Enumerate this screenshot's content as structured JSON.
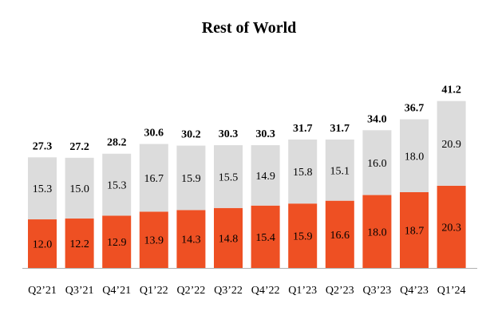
{
  "chart_data": {
    "type": "bar",
    "stacked": true,
    "title": "Rest of World",
    "xlabel": "",
    "ylabel": "",
    "ylim": [
      0,
      45
    ],
    "grid": false,
    "legend": "none",
    "categories": [
      "Q2’21",
      "Q3’21",
      "Q4’21",
      "Q1’22",
      "Q2’22",
      "Q3’22",
      "Q4’22",
      "Q1’23",
      "Q2’23",
      "Q3’23",
      "Q4’23",
      "Q1’24"
    ],
    "series": [
      {
        "name": "bottom",
        "color": "#ee5023",
        "values": [
          12.0,
          12.2,
          12.9,
          13.9,
          14.3,
          14.8,
          15.4,
          15.9,
          16.6,
          18.0,
          18.7,
          20.3
        ]
      },
      {
        "name": "top",
        "color": "#dcdcdc",
        "values": [
          15.3,
          15.0,
          15.3,
          16.7,
          15.9,
          15.5,
          14.9,
          15.8,
          15.1,
          16.0,
          18.0,
          20.9
        ]
      }
    ],
    "totals": [
      27.3,
      27.2,
      28.2,
      30.6,
      30.2,
      30.3,
      30.3,
      31.7,
      31.7,
      34.0,
      36.7,
      41.2
    ]
  }
}
